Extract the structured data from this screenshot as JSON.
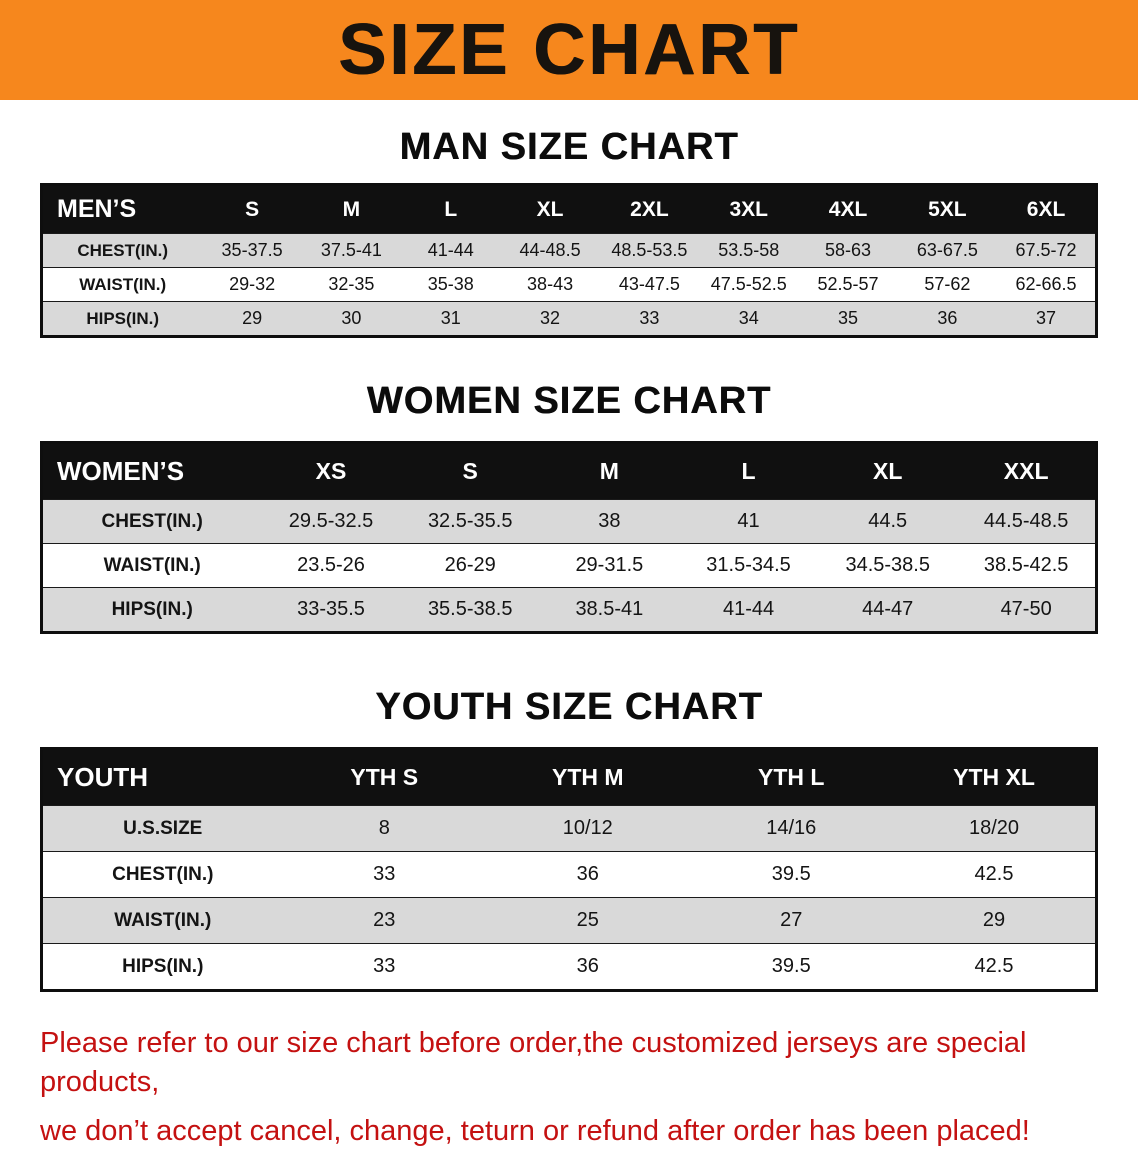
{
  "banner": {
    "title": "SIZE CHART"
  },
  "colors": {
    "banner_bg": "#f6871d",
    "table_header_bg": "#101010",
    "alt_row_bg": "#d9d9d9",
    "disclaimer_text": "#c41111"
  },
  "tables": [
    {
      "id": "men",
      "title": "MAN SIZE CHART",
      "header": [
        "MEN’S",
        "S",
        "M",
        "L",
        "XL",
        "2XL",
        "3XL",
        "4XL",
        "5XL",
        "6XL"
      ],
      "rows": [
        [
          "CHEST(IN.)",
          "35-37.5",
          "37.5-41",
          "41-44",
          "44-48.5",
          "48.5-53.5",
          "53.5-58",
          "58-63",
          "63-67.5",
          "67.5-72"
        ],
        [
          "WAIST(IN.)",
          "29-32",
          "32-35",
          "35-38",
          "38-43",
          "43-47.5",
          "47.5-52.5",
          "52.5-57",
          "57-62",
          "62-66.5"
        ],
        [
          "HIPS(IN.)",
          "29",
          "30",
          "31",
          "32",
          "33",
          "34",
          "35",
          "36",
          "37"
        ]
      ]
    },
    {
      "id": "women",
      "title": "WOMEN SIZE CHART",
      "header": [
        "WOMEN’S",
        "XS",
        "S",
        "M",
        "L",
        "XL",
        "XXL"
      ],
      "rows": [
        [
          "CHEST(IN.)",
          "29.5-32.5",
          "32.5-35.5",
          "38",
          "41",
          "44.5",
          "44.5-48.5"
        ],
        [
          "WAIST(IN.)",
          "23.5-26",
          "26-29",
          "29-31.5",
          "31.5-34.5",
          "34.5-38.5",
          "38.5-42.5"
        ],
        [
          "HIPS(IN.)",
          "33-35.5",
          "35.5-38.5",
          "38.5-41",
          "41-44",
          "44-47",
          "47-50"
        ]
      ]
    },
    {
      "id": "youth",
      "title": "YOUTH SIZE CHART",
      "header": [
        "YOUTH",
        "YTH S",
        "YTH M",
        "YTH L",
        "YTH XL"
      ],
      "rows": [
        [
          "U.S.SIZE",
          "8",
          "10/12",
          "14/16",
          "18/20"
        ],
        [
          "CHEST(IN.)",
          "33",
          "36",
          "39.5",
          "42.5"
        ],
        [
          "WAIST(IN.)",
          "23",
          "25",
          "27",
          "29"
        ],
        [
          "HIPS(IN.)",
          "33",
          "36",
          "39.5",
          "42.5"
        ]
      ]
    }
  ],
  "disclaimer": {
    "line1": "Please refer to our size chart before order,the customized jerseys are special products,",
    "line2": "we don’t accept cancel, change, teturn or refund after order has been placed!"
  }
}
